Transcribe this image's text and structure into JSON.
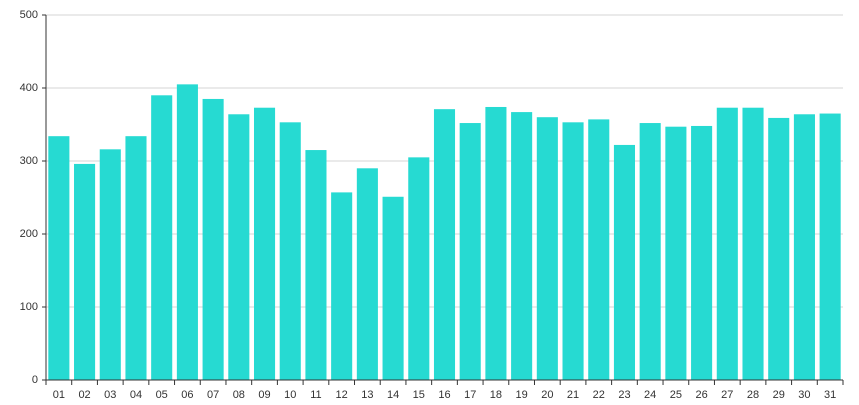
{
  "chart_data": {
    "type": "bar",
    "categories": [
      "01",
      "02",
      "03",
      "04",
      "05",
      "06",
      "07",
      "08",
      "09",
      "10",
      "11",
      "12",
      "13",
      "14",
      "15",
      "16",
      "17",
      "18",
      "19",
      "20",
      "21",
      "22",
      "23",
      "24",
      "25",
      "26",
      "27",
      "28",
      "29",
      "30",
      "31"
    ],
    "values": [
      334,
      296,
      316,
      334,
      390,
      405,
      385,
      364,
      373,
      353,
      315,
      257,
      290,
      251,
      305,
      371,
      352,
      374,
      367,
      360,
      353,
      357,
      322,
      352,
      347,
      348,
      373,
      373,
      359,
      364,
      365
    ],
    "color": "#26dad2",
    "ylim": [
      0,
      500
    ],
    "yticks": [
      0,
      100,
      200,
      300,
      400,
      500
    ],
    "grid": true
  }
}
